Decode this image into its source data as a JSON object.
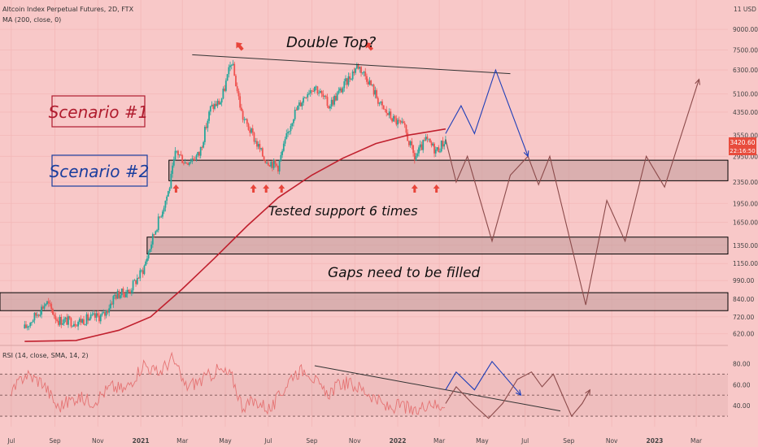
{
  "header": {
    "title": "Altcoin Index Perpetual Futures, 2D, FTX",
    "indicator": "MA (200, close, 0)",
    "rsi_label": "RSI (14, close, SMA, 14, 2)",
    "top_right": "11 USD"
  },
  "price_badge": {
    "price": "3420.60",
    "countdown": "22:16:50",
    "color": "#e84c3d"
  },
  "colors": {
    "background": "#f8c8c8",
    "candle_up": "#26a69a",
    "candle_down": "#ef5350",
    "ma_line": "#c0202e",
    "scenario1": "#1f3fb8",
    "scenario2": "#8b4a4a",
    "rsi_line": "#e57373"
  },
  "annotations": {
    "double_top": "Double Top?",
    "tested_support": "Tested support 6 times",
    "gaps": "Gaps need to be filled",
    "scenario1": "Scenario #1",
    "scenario2": "Scenario #2"
  },
  "chart_data": [
    {
      "type": "candlestick",
      "title": "Altcoin Index Perpetual Futures, 2D, FTX",
      "scale": "log",
      "ylim": [
        560,
        11000
      ],
      "y_ticks": [
        "9000.00",
        "7500.00",
        "6300.00",
        "5100.00",
        "4350.00",
        "3550.00",
        "2950.00",
        "2350.00",
        "1950.00",
        "1650.00",
        "1350.00",
        "1150.00",
        "990.00",
        "840.00",
        "720.00",
        "620.00"
      ],
      "x_ticks": [
        "Jul",
        "Sep",
        "Nov",
        "2021",
        "Mar",
        "May",
        "Jul",
        "Sep",
        "Nov",
        "2022",
        "Mar",
        "May",
        "Jul",
        "Sep",
        "Nov",
        "2023",
        "Mar"
      ],
      "x_tick_dates": [
        "2020-07-01",
        "2020-09-01",
        "2020-11-01",
        "2021-01-01",
        "2021-03-01",
        "2021-05-01",
        "2021-07-01",
        "2021-09-01",
        "2021-11-01",
        "2022-01-01",
        "2022-03-01",
        "2022-05-01",
        "2022-07-01",
        "2022-09-01",
        "2022-11-01",
        "2023-01-01",
        "2023-03-01"
      ],
      "x_range": [
        "2020-06-15",
        "2023-04-15"
      ],
      "price_path": [
        [
          "2020-07-20",
          650
        ],
        [
          "2020-08-10",
          760
        ],
        [
          "2020-08-20",
          820
        ],
        [
          "2020-09-05",
          700
        ],
        [
          "2020-10-01",
          690
        ],
        [
          "2020-10-20",
          710
        ],
        [
          "2020-11-10",
          730
        ],
        [
          "2020-11-25",
          870
        ],
        [
          "2020-12-15",
          900
        ],
        [
          "2021-01-05",
          1100
        ],
        [
          "2021-01-20",
          1500
        ],
        [
          "2021-02-10",
          2200
        ],
        [
          "2021-02-20",
          3100
        ],
        [
          "2021-03-05",
          2800
        ],
        [
          "2021-03-25",
          3000
        ],
        [
          "2021-04-10",
          4500
        ],
        [
          "2021-04-25",
          4800
        ],
        [
          "2021-05-10",
          6800
        ],
        [
          "2021-05-25",
          4200
        ],
        [
          "2021-06-10",
          3500
        ],
        [
          "2021-06-25",
          2900
        ],
        [
          "2021-07-15",
          2700
        ],
        [
          "2021-08-05",
          4200
        ],
        [
          "2021-08-25",
          5200
        ],
        [
          "2021-09-05",
          5500
        ],
        [
          "2021-09-25",
          4600
        ],
        [
          "2021-10-15",
          5400
        ],
        [
          "2021-11-05",
          6600
        ],
        [
          "2021-11-20",
          5800
        ],
        [
          "2021-12-10",
          4500
        ],
        [
          "2021-12-25",
          4100
        ],
        [
          "2022-01-10",
          3800
        ],
        [
          "2022-01-25",
          2900
        ],
        [
          "2022-02-10",
          3400
        ],
        [
          "2022-02-25",
          3100
        ],
        [
          "2022-03-10",
          3420
        ]
      ],
      "ma_line": [
        [
          "2020-07-20",
          580
        ],
        [
          "2020-10-01",
          585
        ],
        [
          "2020-12-01",
          640
        ],
        [
          "2021-01-15",
          720
        ],
        [
          "2021-03-01",
          920
        ],
        [
          "2021-04-15",
          1200
        ],
        [
          "2021-06-01",
          1600
        ],
        [
          "2021-07-15",
          2050
        ],
        [
          "2021-09-01",
          2500
        ],
        [
          "2021-10-15",
          2900
        ],
        [
          "2021-12-01",
          3300
        ],
        [
          "2022-01-15",
          3550
        ],
        [
          "2022-03-10",
          3750
        ]
      ],
      "zones": [
        {
          "label": "support",
          "low": 2380,
          "high": 2850,
          "x_start": "2021-02-10"
        },
        {
          "label": "gap-1",
          "low": 1250,
          "high": 1450,
          "x_start": "2021-01-10"
        },
        {
          "label": "gap-2",
          "low": 760,
          "high": 890,
          "x_start": "2020-06-15"
        }
      ],
      "trendline": [
        [
          "2021-03-15",
          7200
        ],
        [
          "2022-06-10",
          6100
        ]
      ],
      "double_top_markers": [
        "2021-05-05",
        "2021-11-05"
      ],
      "support_test_arrows": [
        "2021-02-20",
        "2021-06-10",
        "2021-06-28",
        "2021-07-20",
        "2022-01-25",
        "2022-02-25"
      ],
      "scenario_1": [
        [
          "2022-03-10",
          3600
        ],
        [
          "2022-04-01",
          4600
        ],
        [
          "2022-04-20",
          3600
        ],
        [
          "2022-05-20",
          6300
        ],
        [
          "2022-07-05",
          2950
        ]
      ],
      "scenario_2": [
        [
          "2022-03-10",
          3420
        ],
        [
          "2022-03-25",
          2350
        ],
        [
          "2022-04-10",
          2950
        ],
        [
          "2022-05-15",
          1400
        ],
        [
          "2022-06-10",
          2500
        ],
        [
          "2022-07-05",
          2950
        ],
        [
          "2022-07-20",
          2300
        ],
        [
          "2022-08-05",
          2950
        ],
        [
          "2022-09-25",
          800
        ],
        [
          "2022-10-25",
          2000
        ],
        [
          "2022-11-20",
          1400
        ],
        [
          "2022-12-20",
          2950
        ],
        [
          "2023-01-15",
          2250
        ],
        [
          "2023-03-05",
          5800
        ]
      ]
    },
    {
      "type": "line",
      "title": "RSI (14, close, SMA, 14, 2)",
      "ylim": [
        20,
        95
      ],
      "y_ticks": [
        80,
        60,
        40
      ],
      "bands": [
        70,
        50,
        30
      ],
      "rsi_path": [
        [
          "2020-07-01",
          50
        ],
        [
          "2020-07-20",
          70
        ],
        [
          "2020-08-15",
          62
        ],
        [
          "2020-09-05",
          38
        ],
        [
          "2020-10-01",
          48
        ],
        [
          "2020-10-25",
          44
        ],
        [
          "2020-11-20",
          58
        ],
        [
          "2020-12-10",
          55
        ],
        [
          "2021-01-05",
          80
        ],
        [
          "2021-01-25",
          70
        ],
        [
          "2021-02-15",
          85
        ],
        [
          "2021-03-05",
          58
        ],
        [
          "2021-04-01",
          65
        ],
        [
          "2021-04-20",
          74
        ],
        [
          "2021-05-10",
          68
        ],
        [
          "2021-05-25",
          40
        ],
        [
          "2021-06-15",
          44
        ],
        [
          "2021-07-05",
          36
        ],
        [
          "2021-08-05",
          70
        ],
        [
          "2021-08-25",
          75
        ],
        [
          "2021-09-20",
          50
        ],
        [
          "2021-10-15",
          62
        ],
        [
          "2021-11-05",
          58
        ],
        [
          "2021-11-25",
          50
        ],
        [
          "2021-12-15",
          38
        ],
        [
          "2022-01-10",
          40
        ],
        [
          "2022-01-25",
          32
        ],
        [
          "2022-02-15",
          45
        ],
        [
          "2022-02-28",
          38
        ],
        [
          "2022-03-10",
          45
        ]
      ],
      "trendline": [
        [
          "2021-09-05",
          78
        ],
        [
          "2022-08-20",
          35
        ]
      ],
      "scenario_1": [
        [
          "2022-03-10",
          55
        ],
        [
          "2022-03-25",
          72
        ],
        [
          "2022-04-20",
          55
        ],
        [
          "2022-05-15",
          82
        ],
        [
          "2022-06-25",
          50
        ]
      ],
      "scenario_2": [
        [
          "2022-03-10",
          42
        ],
        [
          "2022-03-25",
          58
        ],
        [
          "2022-04-20",
          40
        ],
        [
          "2022-05-10",
          28
        ],
        [
          "2022-05-30",
          42
        ],
        [
          "2022-06-20",
          65
        ],
        [
          "2022-07-10",
          72
        ],
        [
          "2022-07-25",
          58
        ],
        [
          "2022-08-10",
          70
        ],
        [
          "2022-09-05",
          30
        ],
        [
          "2022-09-20",
          42
        ],
        [
          "2022-10-01",
          55
        ]
      ]
    }
  ]
}
